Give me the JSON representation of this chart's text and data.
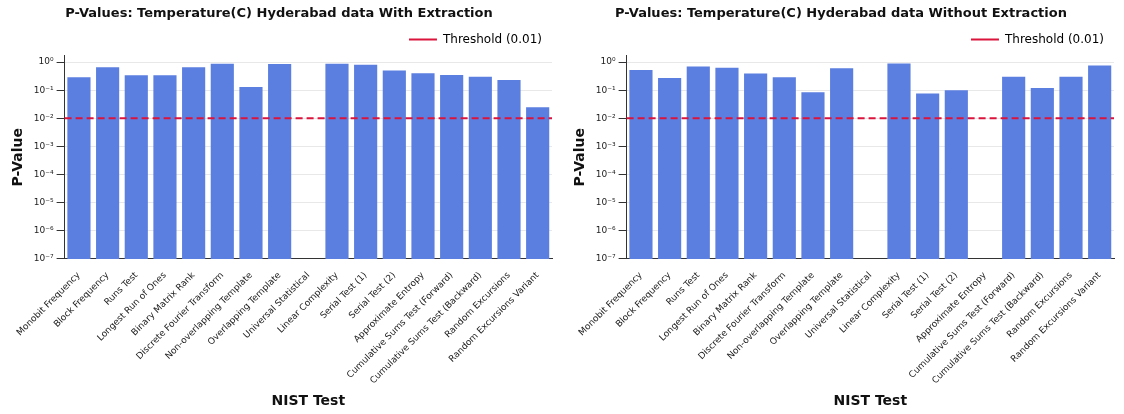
{
  "chart_data": [
    {
      "type": "bar",
      "title": "P-Values: Temperature(C) Hyderabad data With Extraction",
      "xlabel": "NIST Test",
      "ylabel": "P-Value",
      "categories": [
        "Monobit Frequency",
        "Block Frequency",
        "Runs Test",
        "Longest Run of Ones",
        "Binary Matrix Rank",
        "Discrete Fourier Transform",
        "Non-overlapping Template",
        "Overlapping Template",
        "Universal Statistical",
        "Linear Complexity",
        "Serial Test (1)",
        "Serial Test (2)",
        "Approximate Entropy",
        "Cumulative Sums Test (Forward)",
        "Cumulative Sums Test (Backward)",
        "Random Excursions",
        "Random Excursions Variant"
      ],
      "values": [
        0.29,
        0.65,
        0.34,
        0.34,
        0.65,
        0.87,
        0.13,
        0.85,
        null,
        0.87,
        0.8,
        0.5,
        0.4,
        0.35,
        0.3,
        0.23,
        0.025
      ],
      "color": "#5b7fe0",
      "log": "y",
      "ylim": [
        1e-07,
        1.7
      ],
      "yticks": [
        {
          "value": 1e-07,
          "label": "10⁻⁷"
        },
        {
          "value": 1e-06,
          "label": "10⁻⁶"
        },
        {
          "value": 1e-05,
          "label": "10⁻⁵"
        },
        {
          "value": 0.0001,
          "label": "10⁻⁴"
        },
        {
          "value": 0.001,
          "label": "10⁻³"
        },
        {
          "value": 0.01,
          "label": "10⁻²"
        },
        {
          "value": 0.1,
          "label": "10⁻¹"
        },
        {
          "value": 1,
          "label": "10⁰"
        }
      ],
      "ref_lines": [
        {
          "axis": "y",
          "value": 0.01,
          "label": "Threshold (0.01)",
          "color": "#dc143c",
          "line_style": "dashed"
        }
      ],
      "grid": "y",
      "legend": "top right"
    },
    {
      "type": "bar",
      "title": "P-Values: Temperature(C) Hyderabad data Without Extraction",
      "xlabel": "NIST Test",
      "ylabel": "P-Value",
      "categories": [
        "Monobit Frequency",
        "Block Frequency",
        "Runs Test",
        "Longest Run of Ones",
        "Binary Matrix Rank",
        "Discrete Fourier Transform",
        "Non-overlapping Template",
        "Overlapping Template",
        "Universal Statistical",
        "Linear Complexity",
        "Serial Test (1)",
        "Serial Test (2)",
        "Approximate Entropy",
        "Cumulative Sums Test (Forward)",
        "Cumulative Sums Test (Backward)",
        "Random Excursions",
        "Random Excursions Variant"
      ],
      "values": [
        0.52,
        0.27,
        0.7,
        0.63,
        0.39,
        0.29,
        0.084,
        0.6,
        null,
        0.89,
        0.077,
        0.1,
        null,
        0.3,
        0.12,
        0.3,
        0.75
      ],
      "color": "#5b7fe0",
      "log": "y",
      "ylim": [
        1e-07,
        1.7
      ],
      "yticks": [
        {
          "value": 1e-07,
          "label": "10⁻⁷"
        },
        {
          "value": 1e-06,
          "label": "10⁻⁶"
        },
        {
          "value": 1e-05,
          "label": "10⁻⁵"
        },
        {
          "value": 0.0001,
          "label": "10⁻⁴"
        },
        {
          "value": 0.001,
          "label": "10⁻³"
        },
        {
          "value": 0.01,
          "label": "10⁻²"
        },
        {
          "value": 0.1,
          "label": "10⁻¹"
        },
        {
          "value": 1,
          "label": "10⁰"
        }
      ],
      "ref_lines": [
        {
          "axis": "y",
          "value": 0.01,
          "label": "Threshold (0.01)",
          "color": "#dc143c",
          "line_style": "dashed"
        }
      ],
      "grid": "y",
      "legend": "top right"
    }
  ]
}
